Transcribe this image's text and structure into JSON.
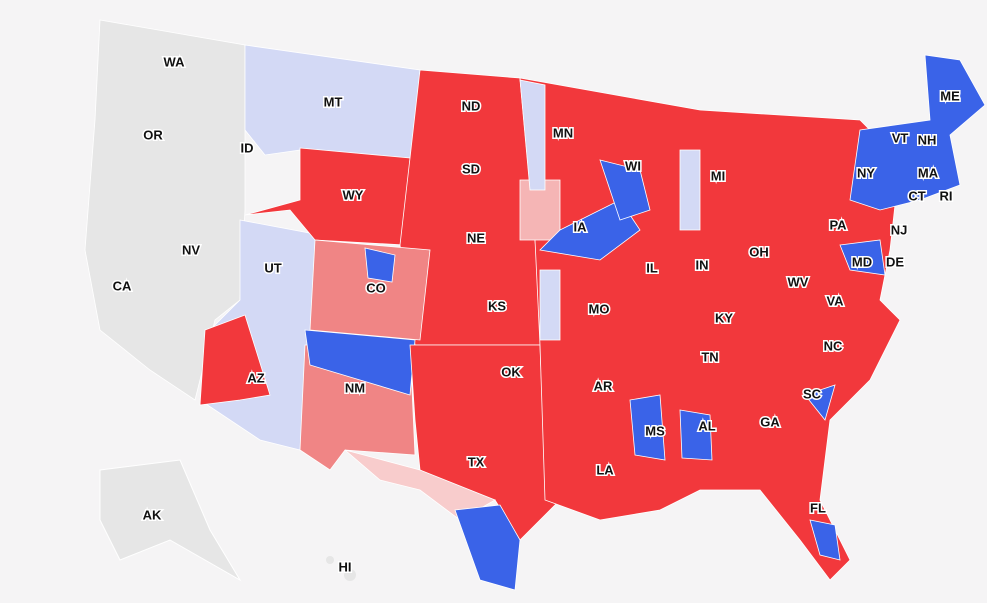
{
  "states": [
    {
      "label": "WA"
    },
    {
      "label": "OR"
    },
    {
      "label": "ID"
    },
    {
      "label": "MT"
    },
    {
      "label": "ND"
    },
    {
      "label": "SD"
    },
    {
      "label": "WY"
    },
    {
      "label": "MN"
    },
    {
      "label": "WI"
    },
    {
      "label": "MI"
    },
    {
      "label": "NY"
    },
    {
      "label": "VT"
    },
    {
      "label": "NH"
    },
    {
      "label": "ME"
    },
    {
      "label": "MA"
    },
    {
      "label": "CT"
    },
    {
      "label": "RI"
    },
    {
      "label": "PA"
    },
    {
      "label": "NJ"
    },
    {
      "label": "IA"
    },
    {
      "label": "NE"
    },
    {
      "label": "UT"
    },
    {
      "label": "NV"
    },
    {
      "label": "CO"
    },
    {
      "label": "CA"
    },
    {
      "label": "OH"
    },
    {
      "label": "IN"
    },
    {
      "label": "IL"
    },
    {
      "label": "DE"
    },
    {
      "label": "MD"
    },
    {
      "label": "KS"
    },
    {
      "label": "MO"
    },
    {
      "label": "WV"
    },
    {
      "label": "VA"
    },
    {
      "label": "KY"
    },
    {
      "label": "NC"
    },
    {
      "label": "TN"
    },
    {
      "label": "AZ"
    },
    {
      "label": "NM"
    },
    {
      "label": "OK"
    },
    {
      "label": "AR"
    },
    {
      "label": "SC"
    },
    {
      "label": "GA"
    },
    {
      "label": "AL"
    },
    {
      "label": "MS"
    },
    {
      "label": "TX"
    },
    {
      "label": "LA"
    },
    {
      "label": "FL"
    },
    {
      "label": "AK"
    },
    {
      "label": "HI"
    }
  ]
}
